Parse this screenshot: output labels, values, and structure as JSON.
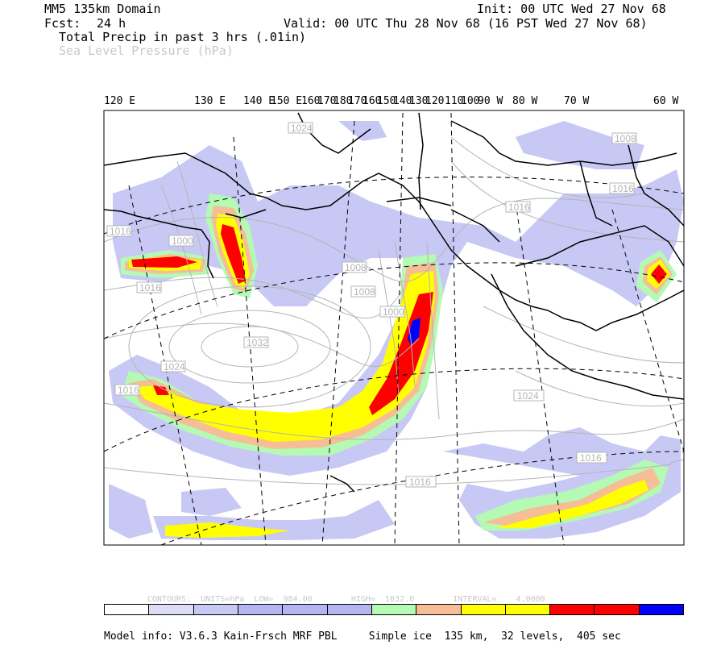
{
  "header": {
    "domain": "MM5 135km Domain",
    "fcst_label": "Fcst:",
    "fcst_value": "24 h",
    "init": "Init: 00 UTC Wed 27 Nov 68",
    "valid": "Valid: 00 UTC Thu 28 Nov 68 (16 PST Wed 27 Nov 68)",
    "field1": "Total Precip in past 3 hrs (.01in)",
    "field2": "Sea Level Pressure (hPa)"
  },
  "lon_labels": [
    "120 E",
    "130 E",
    "140 E",
    "150 E",
    "160",
    "170",
    "180",
    "170",
    "160",
    "150",
    "140",
    "130",
    "120",
    "110",
    "100",
    "90 W",
    "80 W",
    "70 W",
    "60 W"
  ],
  "slp_labels": [
    "1024",
    "1008",
    "1016",
    "1016",
    "1000",
    "1016",
    "1008",
    "1008",
    "1016",
    "1032",
    "1000",
    "1024",
    "1016",
    "1016",
    "1024",
    "1016"
  ],
  "contour_info": "CONTOURS:  UNITS=hPa  LOW=  984.00        HIGH=  1032.0        INTERVAL=    4.0000",
  "colorbar": [
    "#ffffff",
    "#dcdcf5",
    "#c8c8f5",
    "#b4b4f0",
    "#b4b4f0",
    "#b4b4f0",
    "#b4fab4",
    "#f5be96",
    "#ffff00",
    "#ffff00",
    "#ff0000",
    "#ff0000",
    "#0000ff"
  ],
  "footer": "Model info: V3.6.3 Kain-Frsch MRF PBL     Simple ice  135 km,  32 levels,  405 sec",
  "colors": {
    "precip_light": "#c8c8f5",
    "precip_green": "#b4fab4",
    "precip_orange": "#f5be96",
    "precip_yellow": "#ffff00",
    "precip_red": "#ff0000",
    "precip_blue": "#0000ff"
  }
}
